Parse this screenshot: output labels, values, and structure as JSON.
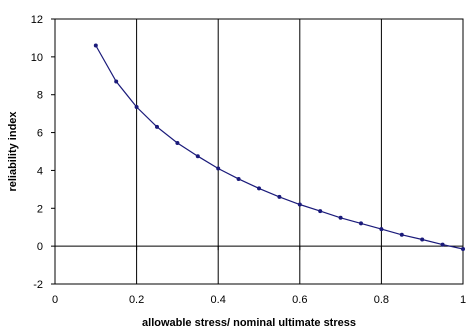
{
  "chart_data": {
    "type": "line",
    "title": "",
    "xlabel": "allowable stress/ nominal ultimate stress",
    "ylabel": "reliability index",
    "xlim": [
      0,
      1
    ],
    "ylim": [
      -2,
      12
    ],
    "xticks": [
      0,
      0.2,
      0.4,
      0.6,
      0.8,
      1
    ],
    "xtick_labels": [
      "0",
      "0.2",
      "0.4",
      "0.6",
      "0.8",
      "1"
    ],
    "yticks": [
      -2,
      0,
      2,
      4,
      6,
      8,
      10,
      12
    ],
    "ytick_labels": [
      "-2",
      "0",
      "2",
      "4",
      "6",
      "8",
      "10",
      "12"
    ],
    "grid": {
      "vertical": true,
      "horizontal": false
    },
    "legend": "none",
    "series": [
      {
        "color": "#1a1a7a",
        "x": [
          0.1,
          0.15,
          0.2,
          0.25,
          0.3,
          0.35,
          0.4,
          0.45,
          0.5,
          0.55,
          0.6,
          0.65,
          0.7,
          0.75,
          0.8,
          0.85,
          0.9,
          0.95,
          1.0
        ],
        "y": [
          10.6,
          8.7,
          7.35,
          6.3,
          5.45,
          4.75,
          4.1,
          3.55,
          3.05,
          2.6,
          2.2,
          1.85,
          1.5,
          1.2,
          0.9,
          0.6,
          0.35,
          0.08,
          -0.15
        ]
      }
    ]
  }
}
